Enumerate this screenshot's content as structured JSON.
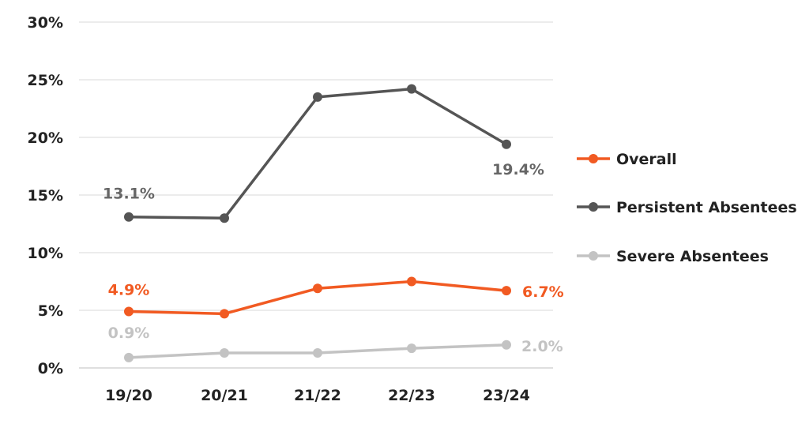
{
  "chart_data": {
    "type": "line",
    "categories": [
      "19/20",
      "20/21",
      "21/22",
      "22/23",
      "23/24"
    ],
    "y_ticks": [
      "0%",
      "5%",
      "10%",
      "15%",
      "20%",
      "25%",
      "30%"
    ],
    "ylim": [
      0,
      30
    ],
    "grid": true,
    "legend_position": "right",
    "series": [
      {
        "name": "Overall",
        "color": "#f15a22",
        "values": [
          4.9,
          4.7,
          6.9,
          7.5,
          6.7
        ],
        "labels": [
          "4.9%",
          "",
          "",
          "",
          "6.7%"
        ]
      },
      {
        "name": "Persistent Absentees",
        "color": "#555555",
        "values": [
          13.1,
          13.0,
          23.5,
          24.2,
          19.4
        ],
        "labels": [
          "13.1%",
          "",
          "",
          "",
          "19.4%"
        ]
      },
      {
        "name": "Severe Absentees",
        "color": "#c3c3c3",
        "values": [
          0.9,
          1.3,
          1.3,
          1.7,
          2.0
        ],
        "labels": [
          "0.9%",
          "",
          "",
          "",
          "2.0%"
        ]
      }
    ]
  }
}
